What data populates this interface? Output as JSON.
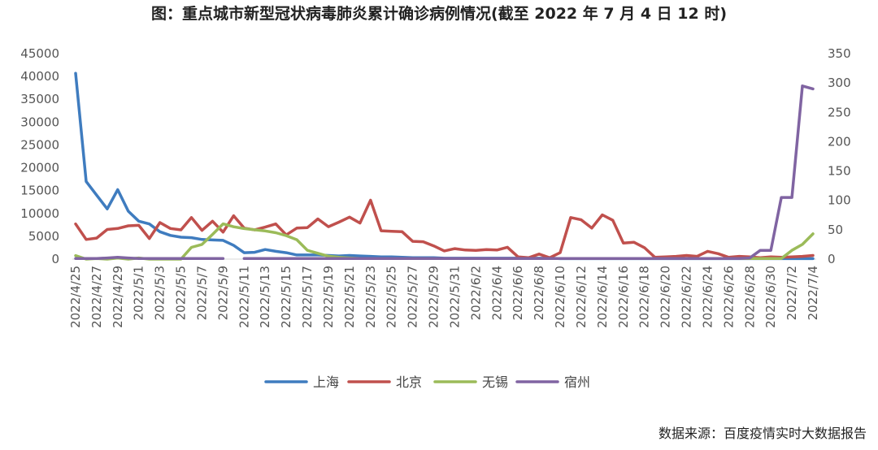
{
  "title": "图：重点城市新型冠状病毒肺炎累计确诊病例情况(截至 2022 年 7 月 4 日 12 时)",
  "source": "数据来源：百度疫情实时大数据报告",
  "chart_data": {
    "type": "line",
    "title": "图：重点城市新型冠状病毒肺炎累计确诊病例情况(截至 2022 年 7 月 4 日 12 时)",
    "xlabel": "",
    "ylabel": "",
    "y_left": {
      "min": 0,
      "max": 45000,
      "ticks": [
        0,
        5000,
        10000,
        15000,
        20000,
        25000,
        30000,
        35000,
        40000,
        45000
      ]
    },
    "y_right": {
      "min": 0,
      "max": 350,
      "ticks": [
        0,
        50,
        100,
        150,
        200,
        250,
        300,
        350
      ]
    },
    "x": [
      "2022/4/25",
      "2022/4/26",
      "2022/4/27",
      "2022/4/28",
      "2022/4/29",
      "2022/4/30",
      "2022/5/1",
      "2022/5/2",
      "2022/5/3",
      "2022/5/4",
      "2022/5/5",
      "2022/5/6",
      "2022/5/7",
      "2022/5/8",
      "2022/5/9",
      "2022/5/10",
      "2022/5/11",
      "2022/5/12",
      "2022/5/13",
      "2022/5/14",
      "2022/5/15",
      "2022/5/16",
      "2022/5/17",
      "2022/5/18",
      "2022/5/19",
      "2022/5/20",
      "2022/5/21",
      "2022/5/22",
      "2022/5/23",
      "2022/5/24",
      "2022/5/25",
      "2022/5/26",
      "2022/5/27",
      "2022/5/28",
      "2022/5/29",
      "2022/5/30",
      "2022/5/31",
      "2022/6/1",
      "2022/6/2",
      "2022/6/3",
      "2022/6/4",
      "2022/6/5",
      "2022/6/6",
      "2022/6/7",
      "2022/6/8",
      "2022/6/9",
      "2022/6/10",
      "2022/6/11",
      "2022/6/12",
      "2022/6/13",
      "2022/6/14",
      "2022/6/15",
      "2022/6/16",
      "2022/6/17",
      "2022/6/18",
      "2022/6/19",
      "2022/6/20",
      "2022/6/21",
      "2022/6/22",
      "2022/6/23",
      "2022/6/24",
      "2022/6/25",
      "2022/6/26",
      "2022/6/27",
      "2022/6/28",
      "2022/6/29",
      "2022/6/30",
      "2022/7/1",
      "2022/7/2",
      "2022/7/3",
      "2022/7/4"
    ],
    "x_tick_labels": [
      "2022/4/25",
      "2022/4/27",
      "2022/4/29",
      "2022/5/1",
      "2022/5/3",
      "2022/5/5",
      "2022/5/7",
      "2022/5/9",
      "2022/5/11",
      "2022/5/13",
      "2022/5/15",
      "2022/5/17",
      "2022/5/19",
      "2022/5/21",
      "2022/5/23",
      "2022/5/25",
      "2022/5/27",
      "2022/5/29",
      "2022/5/31",
      "2022/6/2",
      "2022/6/4",
      "2022/6/6",
      "2022/6/8",
      "2022/6/10",
      "2022/6/12",
      "2022/6/14",
      "2022/6/16",
      "2022/6/18",
      "2022/6/20",
      "2022/6/22",
      "2022/6/24",
      "2022/6/26",
      "2022/6/28",
      "2022/6/30",
      "2022/7/2",
      "2022/7/4"
    ],
    "legend_position": "bottom",
    "grid": false,
    "series": [
      {
        "name": "上海",
        "axis": "left",
        "color": "#3F7CBF",
        "values": [
          40700,
          17000,
          14000,
          11000,
          15200,
          10500,
          8300,
          7700,
          6000,
          5200,
          4800,
          4700,
          4300,
          4200,
          4100,
          3000,
          1400,
          1500,
          2100,
          1700,
          1400,
          900,
          900,
          900,
          800,
          700,
          800,
          700,
          600,
          500,
          500,
          400,
          300,
          300,
          300,
          200,
          200,
          200,
          200,
          200,
          200,
          200,
          200,
          200,
          200,
          200,
          100,
          100,
          100,
          100,
          100,
          100,
          100,
          100,
          100,
          100,
          100,
          100,
          100,
          100,
          100,
          100,
          100,
          100,
          100,
          100,
          100,
          100,
          100,
          100,
          100
        ]
      },
      {
        "name": "北京",
        "axis": "left",
        "color": "#C0504D",
        "values": [
          7700,
          4300,
          4600,
          6500,
          6700,
          7300,
          7400,
          4500,
          8000,
          6700,
          6400,
          9100,
          6300,
          8300,
          5900,
          9500,
          6800,
          6400,
          7000,
          7700,
          5300,
          6800,
          6900,
          8800,
          7100,
          8100,
          9200,
          7900,
          12900,
          6200,
          6100,
          6000,
          3900,
          3800,
          2900,
          1800,
          2300,
          2000,
          1900,
          2100,
          2000,
          2600,
          500,
          300,
          1100,
          300,
          1400,
          9100,
          8600,
          6800,
          9700,
          8500,
          3500,
          3700,
          2500,
          400,
          500,
          600,
          800,
          600,
          1700,
          1200,
          400,
          600,
          500,
          300,
          500,
          400,
          500,
          600,
          800
        ]
      },
      {
        "name": "无锡",
        "axis": "right",
        "color": "#9BBB59",
        "values": [
          6,
          0,
          1,
          0,
          2,
          0,
          2,
          0,
          0,
          0,
          0,
          20,
          25,
          42,
          60,
          55,
          52,
          50,
          48,
          45,
          40,
          33,
          15,
          10,
          5,
          3,
          2,
          1,
          1,
          1,
          1,
          1,
          1,
          1,
          1,
          1,
          1,
          1,
          1,
          1,
          1,
          1,
          1,
          1,
          1,
          1,
          1,
          1,
          1,
          1,
          1,
          1,
          1,
          1,
          1,
          1,
          1,
          1,
          1,
          1,
          1,
          1,
          1,
          1,
          1,
          1,
          1,
          1,
          15,
          25,
          43
        ]
      },
      {
        "name": "宿州",
        "axis": "right",
        "color": "#8064A2",
        "values": [
          1,
          1,
          1,
          2,
          3,
          2,
          1,
          1,
          1,
          1,
          1,
          1,
          1,
          1,
          1,
          null,
          1,
          1,
          1,
          1,
          1,
          1,
          1,
          1,
          1,
          1,
          1,
          1,
          1,
          1,
          1,
          1,
          1,
          1,
          1,
          1,
          1,
          1,
          1,
          1,
          1,
          1,
          1,
          1,
          1,
          1,
          1,
          1,
          1,
          1,
          1,
          1,
          1,
          1,
          1,
          1,
          1,
          1,
          1,
          1,
          1,
          1,
          1,
          1,
          2,
          15,
          15,
          105,
          105,
          295,
          290
        ]
      }
    ]
  }
}
